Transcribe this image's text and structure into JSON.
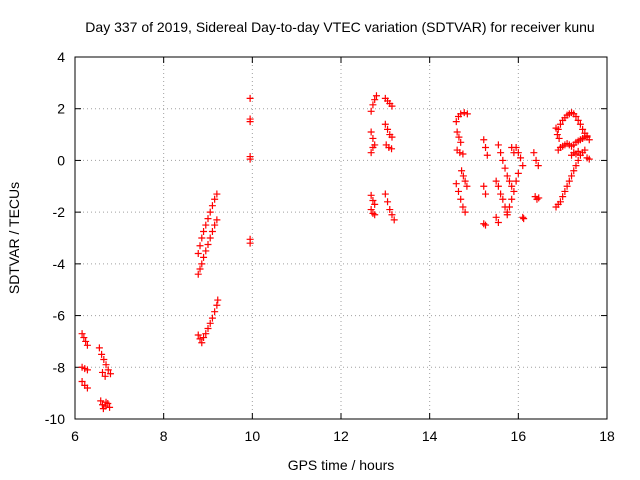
{
  "chart_data": {
    "type": "scatter",
    "title": "Day 337 of 2019, Sidereal Day-to-day VTEC variation (SDTVAR) for receiver kunu",
    "xlabel": "GPS time / hours",
    "ylabel": "SDTVAR / TECUs",
    "xlim": [
      6,
      18
    ],
    "ylim": [
      -10,
      4
    ],
    "xticks": [
      6,
      8,
      10,
      12,
      14,
      16,
      18
    ],
    "yticks": [
      -10,
      -8,
      -6,
      -4,
      -2,
      0,
      2,
      4
    ],
    "xtick_labels": [
      "6",
      "8",
      "10",
      "12",
      "14",
      "16",
      "18"
    ],
    "ytick_labels": [
      "-10",
      "-8",
      "-6",
      "-4",
      "-2",
      "0",
      "2",
      "4"
    ],
    "grid": true,
    "marker": "+",
    "color": "#ff0000",
    "series": [
      {
        "name": "sdtvar",
        "points": [
          [
            6.16,
            -6.7
          ],
          [
            6.2,
            -6.85
          ],
          [
            6.24,
            -7.0
          ],
          [
            6.28,
            -7.15
          ],
          [
            6.16,
            -8.0
          ],
          [
            6.22,
            -8.05
          ],
          [
            6.28,
            -8.1
          ],
          [
            6.16,
            -8.55
          ],
          [
            6.22,
            -8.7
          ],
          [
            6.28,
            -8.8
          ],
          [
            6.55,
            -7.25
          ],
          [
            6.6,
            -7.5
          ],
          [
            6.65,
            -7.7
          ],
          [
            6.7,
            -7.9
          ],
          [
            6.75,
            -8.1
          ],
          [
            6.8,
            -8.25
          ],
          [
            6.62,
            -8.2
          ],
          [
            6.68,
            -8.35
          ],
          [
            6.58,
            -9.3
          ],
          [
            6.62,
            -9.45
          ],
          [
            6.68,
            -9.5
          ],
          [
            6.74,
            -9.4
          ],
          [
            6.78,
            -9.55
          ],
          [
            6.7,
            -9.35
          ],
          [
            6.64,
            -9.6
          ],
          [
            8.78,
            -6.75
          ],
          [
            8.82,
            -6.9
          ],
          [
            8.86,
            -7.05
          ],
          [
            8.9,
            -6.85
          ],
          [
            8.95,
            -6.7
          ],
          [
            9.0,
            -6.5
          ],
          [
            9.05,
            -6.3
          ],
          [
            9.1,
            -6.1
          ],
          [
            9.15,
            -5.85
          ],
          [
            9.2,
            -5.6
          ],
          [
            9.22,
            -5.4
          ],
          [
            8.78,
            -4.4
          ],
          [
            8.82,
            -4.2
          ],
          [
            8.86,
            -4.0
          ],
          [
            8.9,
            -3.75
          ],
          [
            8.95,
            -3.5
          ],
          [
            9.0,
            -3.25
          ],
          [
            9.05,
            -3.0
          ],
          [
            9.1,
            -2.75
          ],
          [
            9.15,
            -2.5
          ],
          [
            9.2,
            -2.3
          ],
          [
            8.78,
            -3.6
          ],
          [
            8.82,
            -3.3
          ],
          [
            8.86,
            -3.0
          ],
          [
            8.9,
            -2.75
          ],
          [
            8.95,
            -2.5
          ],
          [
            9.0,
            -2.25
          ],
          [
            9.05,
            -2.0
          ],
          [
            9.1,
            -1.75
          ],
          [
            9.15,
            -1.5
          ],
          [
            9.2,
            -1.3
          ],
          [
            9.95,
            2.4
          ],
          [
            9.95,
            1.6
          ],
          [
            9.95,
            1.5
          ],
          [
            9.95,
            0.15
          ],
          [
            9.95,
            0.05
          ],
          [
            9.95,
            -3.05
          ],
          [
            9.95,
            -3.2
          ],
          [
            12.68,
            1.9
          ],
          [
            12.72,
            2.15
          ],
          [
            12.76,
            2.35
          ],
          [
            12.8,
            2.5
          ],
          [
            12.68,
            1.1
          ],
          [
            12.72,
            0.85
          ],
          [
            12.76,
            0.6
          ],
          [
            12.68,
            0.3
          ],
          [
            12.72,
            0.5
          ],
          [
            12.68,
            -1.35
          ],
          [
            12.72,
            -1.55
          ],
          [
            12.76,
            -1.7
          ],
          [
            12.68,
            -1.9
          ],
          [
            12.72,
            -2.05
          ],
          [
            12.76,
            -2.1
          ],
          [
            13.0,
            2.4
          ],
          [
            13.05,
            2.3
          ],
          [
            13.1,
            2.2
          ],
          [
            13.15,
            2.1
          ],
          [
            13.0,
            1.4
          ],
          [
            13.05,
            1.2
          ],
          [
            13.1,
            1.0
          ],
          [
            13.15,
            0.9
          ],
          [
            13.02,
            0.6
          ],
          [
            13.08,
            0.5
          ],
          [
            13.14,
            0.45
          ],
          [
            13.0,
            -1.3
          ],
          [
            13.05,
            -1.6
          ],
          [
            13.1,
            -1.9
          ],
          [
            13.15,
            -2.1
          ],
          [
            13.2,
            -2.3
          ],
          [
            14.6,
            1.5
          ],
          [
            14.65,
            1.7
          ],
          [
            14.7,
            1.8
          ],
          [
            14.78,
            1.85
          ],
          [
            14.85,
            1.8
          ],
          [
            14.62,
            1.1
          ],
          [
            14.66,
            0.9
          ],
          [
            14.7,
            0.7
          ],
          [
            14.62,
            0.4
          ],
          [
            14.68,
            0.3
          ],
          [
            14.75,
            0.25
          ],
          [
            14.72,
            -0.4
          ],
          [
            14.76,
            -0.6
          ],
          [
            14.8,
            -0.8
          ],
          [
            14.84,
            -1.0
          ],
          [
            14.6,
            -0.9
          ],
          [
            14.65,
            -1.2
          ],
          [
            14.7,
            -1.5
          ],
          [
            14.75,
            -1.8
          ],
          [
            14.8,
            -2.0
          ],
          [
            15.22,
            0.8
          ],
          [
            15.26,
            0.5
          ],
          [
            15.3,
            0.2
          ],
          [
            15.22,
            -1.0
          ],
          [
            15.26,
            -1.3
          ],
          [
            15.22,
            -2.45
          ],
          [
            15.26,
            -2.5
          ],
          [
            15.55,
            0.6
          ],
          [
            15.6,
            0.3
          ],
          [
            15.65,
            0.0
          ],
          [
            15.7,
            -0.3
          ],
          [
            15.75,
            -0.6
          ],
          [
            15.8,
            -0.8
          ],
          [
            15.85,
            -1.0
          ],
          [
            15.5,
            -0.8
          ],
          [
            15.55,
            -1.0
          ],
          [
            15.6,
            -1.3
          ],
          [
            15.65,
            -1.5
          ],
          [
            15.7,
            -1.8
          ],
          [
            15.75,
            -2.0
          ],
          [
            15.5,
            -2.2
          ],
          [
            15.55,
            -2.4
          ],
          [
            15.85,
            0.5
          ],
          [
            15.9,
            0.3
          ],
          [
            15.95,
            0.5
          ],
          [
            16.0,
            0.3
          ],
          [
            16.05,
            0.1
          ],
          [
            16.1,
            -0.2
          ],
          [
            16.0,
            -0.5
          ],
          [
            15.95,
            -0.8
          ],
          [
            15.9,
            -1.2
          ],
          [
            15.85,
            -1.5
          ],
          [
            15.8,
            -1.8
          ],
          [
            15.75,
            -2.1
          ],
          [
            16.1,
            -2.2
          ],
          [
            16.12,
            -2.25
          ],
          [
            16.35,
            0.3
          ],
          [
            16.4,
            0.0
          ],
          [
            16.45,
            -0.2
          ],
          [
            16.38,
            -1.4
          ],
          [
            16.42,
            -1.5
          ],
          [
            16.46,
            -1.45
          ],
          [
            16.85,
            -1.8
          ],
          [
            16.9,
            -1.7
          ],
          [
            16.95,
            -1.6
          ],
          [
            17.0,
            -1.4
          ],
          [
            17.05,
            -1.2
          ],
          [
            17.1,
            -1.0
          ],
          [
            17.15,
            -0.8
          ],
          [
            17.2,
            -0.6
          ],
          [
            17.25,
            -0.4
          ],
          [
            17.3,
            -0.2
          ],
          [
            17.35,
            0.0
          ],
          [
            17.4,
            0.2
          ],
          [
            16.9,
            1.2
          ],
          [
            16.95,
            1.4
          ],
          [
            17.0,
            1.55
          ],
          [
            17.05,
            1.65
          ],
          [
            17.1,
            1.75
          ],
          [
            17.15,
            1.8
          ],
          [
            17.2,
            1.85
          ],
          [
            17.25,
            1.8
          ],
          [
            17.3,
            1.7
          ],
          [
            17.35,
            1.55
          ],
          [
            17.4,
            1.4
          ],
          [
            17.45,
            1.2
          ],
          [
            17.5,
            1.05
          ],
          [
            17.55,
            0.9
          ],
          [
            17.6,
            0.8
          ],
          [
            16.9,
            0.4
          ],
          [
            16.95,
            0.5
          ],
          [
            17.0,
            0.55
          ],
          [
            17.05,
            0.6
          ],
          [
            17.1,
            0.65
          ],
          [
            17.15,
            0.6
          ],
          [
            17.2,
            0.55
          ],
          [
            17.25,
            0.6
          ],
          [
            17.3,
            0.7
          ],
          [
            17.35,
            0.75
          ],
          [
            17.4,
            0.8
          ],
          [
            17.45,
            0.85
          ],
          [
            17.5,
            0.9
          ],
          [
            17.55,
            0.95
          ],
          [
            17.2,
            0.2
          ],
          [
            17.25,
            0.3
          ],
          [
            17.3,
            0.25
          ],
          [
            17.35,
            0.35
          ],
          [
            17.45,
            0.3
          ],
          [
            17.5,
            0.4
          ],
          [
            17.55,
            0.1
          ],
          [
            17.6,
            0.05
          ],
          [
            16.85,
            1.25
          ],
          [
            16.88,
            1.0
          ],
          [
            16.92,
            0.85
          ]
        ]
      }
    ]
  }
}
